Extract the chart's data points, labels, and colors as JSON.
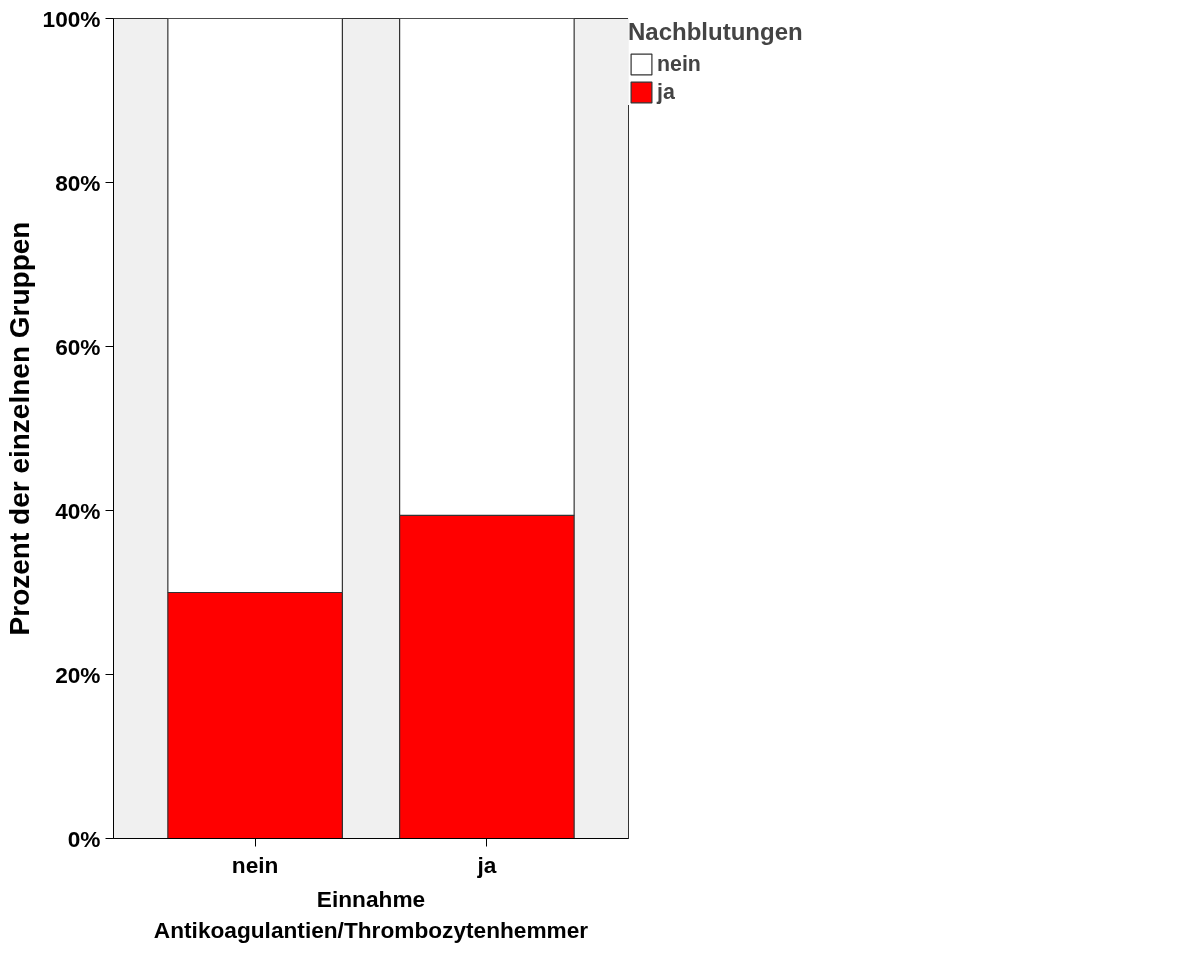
{
  "chart_data": {
    "type": "bar",
    "stacked": true,
    "categories": [
      "nein",
      "ja"
    ],
    "ylabel": "Prozent der einzelnen Gruppen",
    "xlabel": "Einnahme\nAntikoagulantien/Thrombozytenhemmer",
    "legend_title": "Nachblutungen",
    "series": [
      {
        "name": "ja",
        "color": "#ff0000",
        "values": [
          30.0,
          39.4
        ]
      },
      {
        "name": "nein",
        "color": "#ffffff",
        "values": [
          70.0,
          60.6
        ]
      }
    ],
    "ylim": [
      0,
      100
    ],
    "yticks": [
      {
        "value": 0,
        "label": "0%"
      },
      {
        "value": 20,
        "label": "20%"
      },
      {
        "value": 40,
        "label": "40%"
      },
      {
        "value": 60,
        "label": "60%"
      },
      {
        "value": 80,
        "label": "80%"
      },
      {
        "value": 100,
        "label": "100%"
      }
    ],
    "grid": false,
    "legend": "top right"
  }
}
